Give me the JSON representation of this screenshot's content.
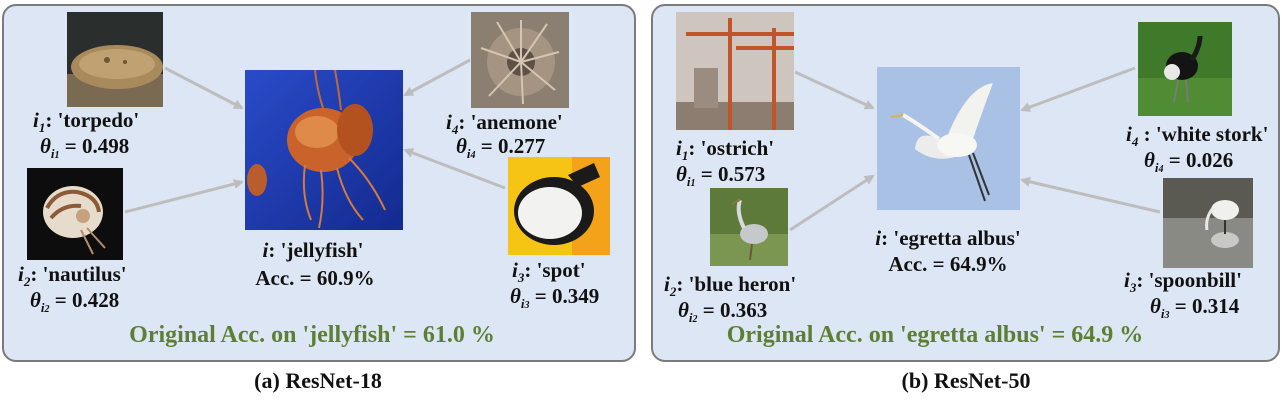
{
  "panel_a": {
    "center": {
      "prefix": "i",
      "name": "'jellyfish'",
      "acc": "Acc. = 60.9%"
    },
    "i1": {
      "idx": "1",
      "name": "'torpedo'",
      "theta": "0.498"
    },
    "i2": {
      "idx": "2",
      "name": "'nautilus'",
      "theta": "0.428"
    },
    "i3": {
      "idx": "3",
      "name": "'spot'",
      "theta": "0.349"
    },
    "i4": {
      "idx": "4",
      "name": "'anemone'",
      "theta": "0.277"
    },
    "footer": "Original Acc. on 'jellyfish' = 61.0 %",
    "caption": "(a) ResNet-18"
  },
  "panel_b": {
    "center": {
      "prefix": "i",
      "name": "'egretta albus'",
      "acc": "Acc. = 64.9%"
    },
    "i1": {
      "idx": "1",
      "name": "'ostrich'",
      "theta": "0.573"
    },
    "i2": {
      "idx": "2",
      "name": "'blue heron'",
      "theta": "0.363"
    },
    "i3": {
      "idx": "3",
      "name": "'spoonbill'",
      "theta": "0.314"
    },
    "i4": {
      "idx": "4",
      "name": "'white stork'",
      "theta": "0.026"
    },
    "footer": "Original Acc. on 'egretta albus' = 64.9 %",
    "caption": "(b) ResNet-50"
  },
  "symbols": {
    "i": "i",
    "theta": "θ",
    "colon": ":",
    "equals": "="
  },
  "colors": {
    "panel_bg": "#dde6f4",
    "panel_border": "#7b7b7b",
    "footer_text": "#5d7f33",
    "arrow": "#bdbdbd"
  }
}
